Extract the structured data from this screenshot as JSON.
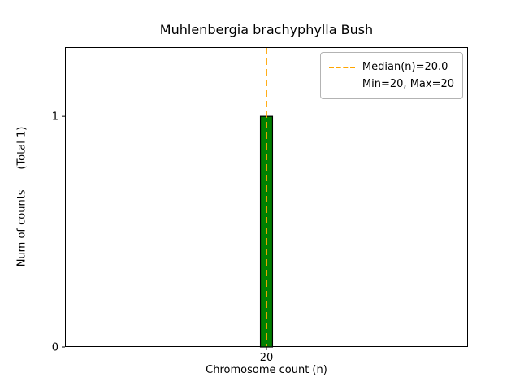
{
  "chart_data": {
    "type": "bar",
    "title": "Muhlenbergia brachyphylla Bush",
    "xlabel": "Chromosome count (n)",
    "ylabel": "Num of counts      (Total 1)",
    "x": [
      20
    ],
    "counts": [
      1
    ],
    "total_counts": 1,
    "xlim": [
      19.45,
      20.55
    ],
    "ylim": [
      0,
      1.3
    ],
    "xticks": [
      {
        "value": 20,
        "label": "20"
      }
    ],
    "yticks": [
      {
        "value": 0,
        "label": "0"
      },
      {
        "value": 1,
        "label": "1"
      }
    ],
    "grid": false,
    "bar_color": "#008000",
    "bar_edge_color": "#000000",
    "bar_width_fraction": 0.03,
    "median": {
      "value": 20.0,
      "color": "#ffa500",
      "style": "dashed"
    },
    "min": 20,
    "max": 20,
    "legend": {
      "position": "upper right",
      "entries": [
        {
          "label": "Median(n)=20.0",
          "marker": "dashed-line",
          "color": "#ffa500"
        },
        {
          "label": "Min=20, Max=20",
          "marker": "none"
        }
      ]
    }
  }
}
